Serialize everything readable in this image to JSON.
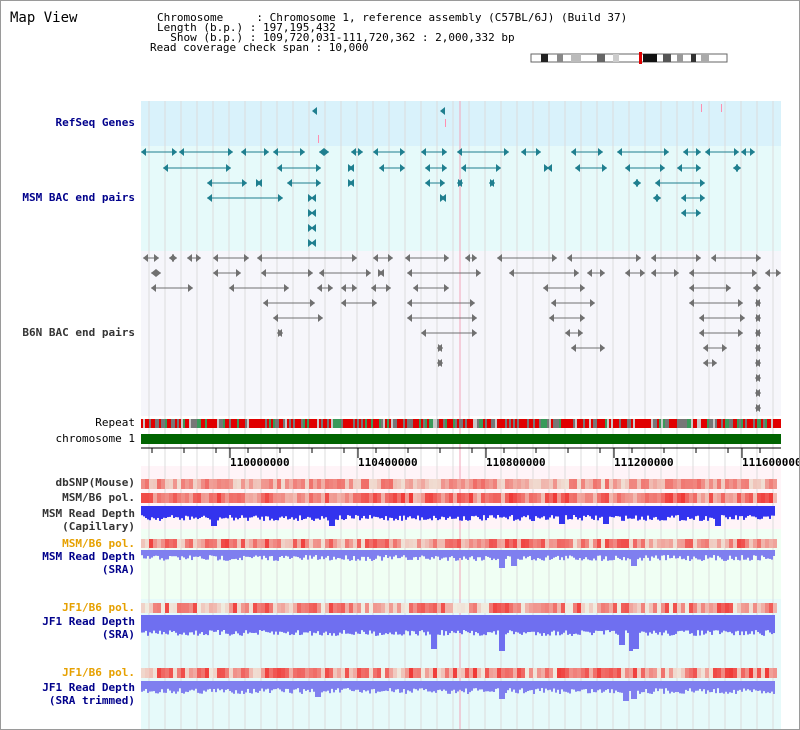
{
  "title": "Map View",
  "info": {
    "line1": "Chromosome     : Chromosome 1, reference assembly (C57BL/6J) (Build 37)",
    "line2": "Length (b.p.) : 197,195,432",
    "line3": "  Show (b.p.) : 109,720,031-111,720,362 : 2,000,332 bp",
    "line4": "Read coverage check span : 10,000"
  },
  "labels": {
    "refseq": "RefSeq Genes",
    "msm_bac": "MSM BAC end pairs",
    "b6n_bac": "B6N BAC end pairs",
    "repeat": "Repeat",
    "chromosome": "chromosome 1",
    "dbsnp": "dbSNP(Mouse)",
    "msm_b6_pol": "MSM/B6 pol.",
    "msm_read_depth_cap_1": "MSM Read Depth",
    "msm_read_depth_cap_2": "(Capillary)",
    "msm_b6_pol_2": "MSM/B6 pol.",
    "msm_read_depth_sra_1": "MSM Read Depth",
    "msm_read_depth_sra_2": "(SRA)",
    "jf1_b6_pol": "JF1/B6 pol.",
    "jf1_read_depth_sra_1": "JF1 Read Depth",
    "jf1_read_depth_sra_2": "(SRA)",
    "jf1_b6_pol_2": "JF1/B6 pol.",
    "jf1_read_depth_trim_1": "JF1 Read Depth",
    "jf1_read_depth_trim_2": "(SRA trimmed)"
  },
  "axis": {
    "ticks": [
      "110000000",
      "110400000",
      "110800000",
      "111200000",
      "111600000"
    ]
  },
  "colors": {
    "refseq_bg": "#d9f2fb",
    "msm_bac_bg": "#e6fafa",
    "b6n_bac_bg": "#f6f6fb",
    "msm_feature": "#1f7f8f",
    "b6n_feature": "#707070",
    "label_blue": "#00008b",
    "label_orange": "#e6a000",
    "chrom_green": "#006400",
    "depth_blue": "#3333ee"
  }
}
